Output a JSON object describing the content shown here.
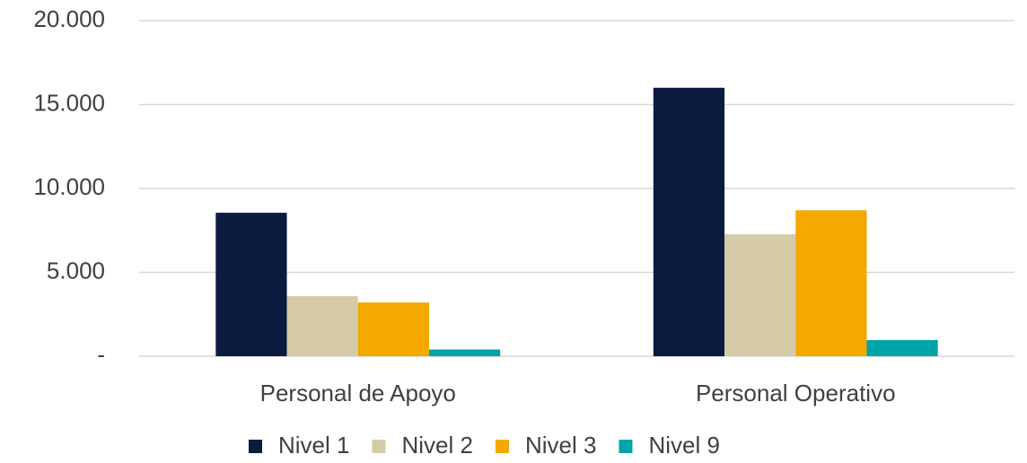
{
  "chart_data": {
    "type": "bar",
    "categories": [
      "Personal de Apoyo",
      "Personal Operativo"
    ],
    "series": [
      {
        "name": "Nivel 1",
        "color": "#0b1a3f",
        "values": [
          8550,
          16000
        ]
      },
      {
        "name": "Nivel 2",
        "color": "#d5cba6",
        "values": [
          3580,
          7270
        ]
      },
      {
        "name": "Nivel 3",
        "color": "#f5a800",
        "values": [
          3200,
          8700
        ]
      },
      {
        "name": "Nivel 9",
        "color": "#00a3a6",
        "values": [
          400,
          960
        ]
      }
    ],
    "ylim": [
      0,
      20000
    ],
    "yticks": [
      {
        "value": 0,
        "label": "-"
      },
      {
        "value": 5000,
        "label": "5.000"
      },
      {
        "value": 10000,
        "label": "10.000"
      },
      {
        "value": 15000,
        "label": "15.000"
      },
      {
        "value": 20000,
        "label": "20.000"
      }
    ],
    "grid": true,
    "legend": "bottom"
  }
}
